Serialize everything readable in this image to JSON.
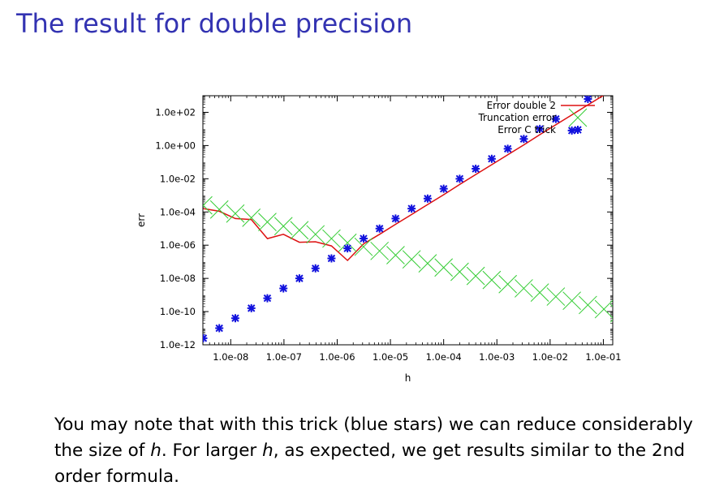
{
  "slide": {
    "title": "The result for double precision",
    "caption": {
      "part1": "You may note that with this trick (blue stars) we can reduce considerably the size of ",
      "h1": "h",
      "part2": ". For larger ",
      "h2": "h",
      "part3": ", as expected, we get results similar to the 2nd order formula."
    }
  },
  "chart_data": {
    "type": "line",
    "xlabel": "h",
    "ylabel": "err",
    "x_scale": "log",
    "y_scale": "log",
    "xlim": [
      3e-09,
      0.15
    ],
    "ylim": [
      1e-12,
      1000.0
    ],
    "x_ticks": [
      {
        "value": 1e-08,
        "label": "1.0e-08"
      },
      {
        "value": 1e-07,
        "label": "1.0e-07"
      },
      {
        "value": 1e-06,
        "label": "1.0e-06"
      },
      {
        "value": 1e-05,
        "label": "1.0e-05"
      },
      {
        "value": 0.0001,
        "label": "1.0e-04"
      },
      {
        "value": 0.001,
        "label": "1.0e-03"
      },
      {
        "value": 0.01,
        "label": "1.0e-02"
      },
      {
        "value": 0.1,
        "label": "1.0e-01"
      }
    ],
    "y_ticks": [
      {
        "value": 1e-12,
        "label": "1.0e-12"
      },
      {
        "value": 1e-10,
        "label": "1.0e-10"
      },
      {
        "value": 1e-08,
        "label": "1.0e-08"
      },
      {
        "value": 1e-06,
        "label": "1.0e-06"
      },
      {
        "value": 0.0001,
        "label": "1.0e-04"
      },
      {
        "value": 0.01,
        "label": "1.0e-02"
      },
      {
        "value": 1,
        "label": "1.0e+00"
      },
      {
        "value": 100,
        "label": "1.0e+02"
      }
    ],
    "legend_position": "top-right",
    "series": [
      {
        "name": "Error double 2",
        "style": "line",
        "color": "#dd1111",
        "points": [
          [
            3.05e-09,
            0.00016
          ],
          [
            6.1e-09,
            0.00011
          ],
          [
            1.22e-08,
            4e-05
          ],
          [
            2.44e-08,
            3.5e-05
          ],
          [
            4.88e-08,
            2.5e-06
          ],
          [
            9.77e-08,
            4.5e-06
          ],
          [
            1.95e-07,
            1.5e-06
          ],
          [
            3.91e-07,
            1.6e-06
          ],
          [
            7.81e-07,
            9e-07
          ],
          [
            1.56e-06,
            1.2e-07
          ],
          [
            3.13e-06,
            1.2e-06
          ],
          [
            6.25e-06,
            4.5e-06
          ],
          [
            1.25e-05,
            1.8e-05
          ],
          [
            2.5e-05,
            7e-05
          ],
          [
            5e-05,
            0.00028
          ],
          [
            0.0001,
            0.0011
          ],
          [
            0.0002,
            0.0045
          ],
          [
            0.0004,
            0.018
          ],
          [
            0.0008,
            0.07
          ],
          [
            0.0016,
            0.28
          ],
          [
            0.0032,
            1.1
          ],
          [
            0.0064,
            4.5
          ],
          [
            0.0128,
            18
          ],
          [
            0.0256,
            70
          ],
          [
            0.0512,
            280
          ],
          [
            0.1024,
            1100
          ]
        ]
      },
      {
        "name": "Truncation error",
        "style": "cross",
        "color": "#33cc33",
        "points": [
          [
            3.05e-09,
            0.00025
          ],
          [
            6.1e-09,
            0.00014
          ],
          [
            1.22e-08,
            8e-05
          ],
          [
            2.44e-08,
            4.5e-05
          ],
          [
            4.88e-08,
            2.5e-05
          ],
          [
            9.77e-08,
            1.4e-05
          ],
          [
            1.95e-07,
            8e-06
          ],
          [
            3.91e-07,
            4.5e-06
          ],
          [
            7.81e-07,
            2.5e-06
          ],
          [
            1.56e-06,
            1.4e-06
          ],
          [
            3.13e-06,
            8e-07
          ],
          [
            6.25e-06,
            4.5e-07
          ],
          [
            1.25e-05,
            2.5e-07
          ],
          [
            2.5e-05,
            1.4e-07
          ],
          [
            5e-05,
            8e-08
          ],
          [
            0.0001,
            4.5e-08
          ],
          [
            0.0002,
            2.5e-08
          ],
          [
            0.0004,
            1.4e-08
          ],
          [
            0.0008,
            8e-09
          ],
          [
            0.0016,
            4.5e-09
          ],
          [
            0.0032,
            2.5e-09
          ],
          [
            0.0064,
            1.4e-09
          ],
          [
            0.0128,
            8e-10
          ],
          [
            0.0256,
            4.5e-10
          ],
          [
            0.0512,
            2.5e-10
          ],
          [
            0.1024,
            1.4e-10
          ],
          [
            0.2,
            8e-11
          ]
        ]
      },
      {
        "name": "Error C trick",
        "style": "star",
        "color": "#1111dd",
        "points": [
          [
            3.05e-09,
            2.5e-12
          ],
          [
            6.1e-09,
            1e-11
          ],
          [
            1.22e-08,
            4e-11
          ],
          [
            2.44e-08,
            1.6e-10
          ],
          [
            4.88e-08,
            6.4e-10
          ],
          [
            9.77e-08,
            2.5e-09
          ],
          [
            1.95e-07,
            1e-08
          ],
          [
            3.91e-07,
            4e-08
          ],
          [
            7.81e-07,
            1.6e-07
          ],
          [
            1.56e-06,
            6.4e-07
          ],
          [
            3.13e-06,
            2.5e-06
          ],
          [
            6.25e-06,
            1e-05
          ],
          [
            1.25e-05,
            4e-05
          ],
          [
            2.5e-05,
            0.00016
          ],
          [
            5e-05,
            0.00064
          ],
          [
            0.0001,
            0.0025
          ],
          [
            0.0002,
            0.01
          ],
          [
            0.0004,
            0.04
          ],
          [
            0.0008,
            0.16
          ],
          [
            0.0016,
            0.64
          ],
          [
            0.0032,
            2.5
          ],
          [
            0.0064,
            10
          ],
          [
            0.0128,
            40
          ],
          [
            0.0256,
            8
          ],
          [
            0.0512,
            640
          ],
          [
            0.1024,
            2500
          ]
        ]
      }
    ]
  }
}
